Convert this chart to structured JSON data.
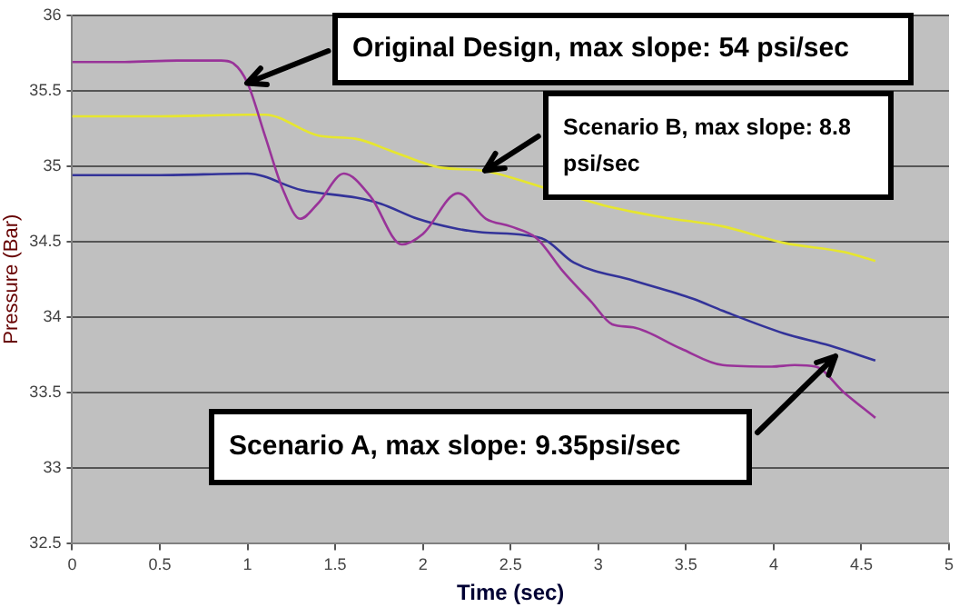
{
  "chart_data": {
    "type": "line",
    "xlabel": "Time (sec)",
    "ylabel": "Pressure (Bar)",
    "xlim": [
      0,
      5
    ],
    "xticks": [
      0,
      0.5,
      1,
      1.5,
      2,
      2.5,
      3,
      3.5,
      4,
      4.5,
      5
    ],
    "ylim": [
      32.5,
      36
    ],
    "yticks": [
      32.5,
      33,
      33.5,
      34,
      34.5,
      35,
      35.5,
      36
    ],
    "grid": "y",
    "legend": false,
    "marker": "none",
    "line_style": "solid",
    "series": [
      {
        "color": "#993399",
        "x": [
          0,
          0.3,
          0.6,
          0.85,
          0.92,
          1.0,
          1.1,
          1.2,
          1.3,
          1.4,
          1.55,
          1.7,
          1.88,
          2.0,
          2.2,
          2.36,
          2.5,
          2.65,
          2.8,
          2.96,
          3.08,
          3.2,
          3.47,
          3.71,
          3.99,
          4.12,
          4.24,
          4.4,
          4.58
        ],
        "values": [
          35.69,
          35.69,
          35.7,
          35.7,
          35.68,
          35.55,
          35.2,
          34.85,
          34.65,
          34.75,
          34.95,
          34.8,
          34.48,
          34.55,
          34.82,
          34.65,
          34.6,
          34.52,
          34.3,
          34.1,
          33.95,
          33.93,
          33.79,
          33.68,
          33.67,
          33.68,
          33.67,
          33.5,
          33.33
        ]
      },
      {
        "color": "#e6e62e",
        "x": [
          0,
          0.5,
          1.0,
          1.1,
          1.41,
          1.62,
          1.82,
          2.1,
          2.34,
          2.68,
          3.03,
          3.37,
          3.71,
          4.06,
          4.4,
          4.58
        ],
        "values": [
          35.33,
          35.33,
          35.34,
          35.34,
          35.2,
          35.18,
          35.1,
          34.99,
          34.97,
          34.86,
          34.74,
          34.66,
          34.6,
          34.49,
          34.43,
          34.37
        ]
      },
      {
        "color": "#333399",
        "x": [
          0,
          0.5,
          1.0,
          1.31,
          1.62,
          1.76,
          1.97,
          2.17,
          2.34,
          2.68,
          2.86,
          3.2,
          3.54,
          3.71,
          4.06,
          4.32,
          4.58
        ],
        "values": [
          34.94,
          34.94,
          34.95,
          34.84,
          34.79,
          34.75,
          34.65,
          34.59,
          34.56,
          34.52,
          34.36,
          34.24,
          34.12,
          34.04,
          33.89,
          33.81,
          33.71
        ]
      }
    ],
    "annotations": [
      {
        "text": "Original Design, max slope:  54 psi/sec",
        "x": 1.0,
        "y": 35.55
      },
      {
        "text": "Scenario B, max slope: 8.8 psi/sec",
        "x": 2.35,
        "y": 34.97
      },
      "Scenario A, max slope: 9.35psi/sec"
    ]
  }
}
